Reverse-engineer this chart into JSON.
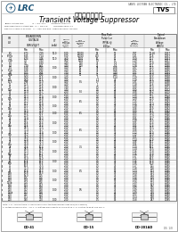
{
  "company": "LRC",
  "company_full": "GANSU LEIYUAN ELECTRONIC CO., LTD",
  "chinese_title": "抑制电压二极管",
  "english_title": "Transient Voltage Suppressor",
  "part_type": "TVS",
  "spec_lines": [
    "JEDEC STANDARD:            Ic = DO-41.1        Ordering 1500-4.1",
    "PERFORMANCE STANDARD:  Ic = DO-1.8         Ordering 2500-4.1",
    "REPACK TYPES & STYLES:  Ic = 200-200.800  Ordering 2500-APS-808"
  ],
  "col_headers_row1": [
    "VR\n(V)",
    "BREAKDOWN\nVOLTAGE\nVBR(V) @IT",
    "IT\n(mA)",
    "DEVICE\nMAXIMUM\nReverse\nLeakage\n@VWM\nID(μA)",
    "MAXIMUM\nCLAMPING\nVOLTAGE\nVC(V)\n@IPP",
    "MAXIMUM\nPEAK PULSE\nCURRENT\nIPP(A)",
    "最大芀抗\nRD(Ω)",
    "Maximum\nTemperature\nCoefficient\nof VBR\n(%/°C)"
  ],
  "col_headers_row2": [
    "",
    "Min",
    "Max",
    "",
    "",
    "",
    "",
    "Min",
    "Max",
    "RD",
    "TC"
  ],
  "row_data": [
    [
      "6.5",
      "6.73",
      "7.39",
      "10.0",
      "5.00",
      "10000",
      "85",
      "57",
      "0.97",
      "10.46",
      "0.057"
    ],
    [
      "6.97b",
      "6.45",
      "7.14",
      "",
      "5.00",
      "10000",
      "400",
      "57",
      "1.41",
      "10.6",
      "0.057"
    ],
    [
      "7.1",
      "6.74",
      "7.46",
      "10.0",
      "4.60",
      "1000",
      "50",
      "51",
      "1.59",
      "10.7",
      "0.057"
    ],
    [
      "7.4b",
      "7.0",
      "7.83",
      "",
      "4.60",
      "1000",
      "5.0",
      "51",
      "1.19",
      "11.1",
      "0.057"
    ],
    [
      "8.0",
      "7.6",
      "8.40",
      "",
      "4.40",
      "100",
      "33",
      "5.4",
      "1.78",
      "11.8",
      "0.060"
    ],
    [
      "8.2",
      "7.79",
      "8.61",
      "",
      "4.40",
      "100",
      "23",
      "5.4",
      "1.78",
      "12.1",
      "0.060"
    ],
    [
      "8.5",
      "8.08",
      "8.93",
      "1.00",
      "4.10",
      "50",
      "38",
      "1.68",
      "1.87",
      "12.5",
      "0.060"
    ],
    [
      "8.5b",
      "8.08",
      "8.93",
      "",
      "4.10",
      "50",
      "34",
      "1.68",
      "1.87",
      "12.5",
      "0.060"
    ],
    [
      "9.0",
      "8.55",
      "9.45",
      "",
      "3.70",
      "10",
      "30",
      "4.40",
      "1.07",
      "13.0",
      "0.064"
    ],
    [
      "9.0b",
      "8.55",
      "9.45",
      "",
      "3.70",
      "10",
      "41",
      "4.40",
      "1.07",
      "13.0",
      "0.064"
    ],
    [
      "10",
      "9.50",
      "10.5",
      "1.00",
      "4.00",
      "",
      "5",
      "5.14",
      "1.19",
      "14.5",
      "0.068"
    ],
    [
      "10b",
      "9.50",
      "10.5",
      "",
      "4.00",
      "",
      "1.7",
      "34",
      "1.19",
      "14.5",
      "0.068"
    ],
    [
      "10.5",
      "9.98",
      "11.0",
      "",
      "4.00",
      "5.5",
      "0.7",
      "54",
      "1.31",
      "15.0",
      "0.068"
    ],
    [
      "11",
      "10.5",
      "11.6",
      "",
      "4.00",
      "",
      "1",
      "74",
      "1.18",
      "15.6",
      "0.068"
    ],
    [
      "12",
      "11.4",
      "12.6",
      "1.00",
      "3.40",
      "",
      "0.5",
      "74",
      "1.00",
      "17.0",
      "0.072"
    ],
    [
      "12b",
      "11.4",
      "12.6",
      "",
      "3.40",
      "",
      "0.5",
      "74",
      "1.00",
      "17.0",
      "0.072"
    ],
    [
      "13",
      "12.4",
      "13.7",
      "",
      "2.50",
      "5.0",
      "0.5",
      "54",
      "1.08",
      "18.2",
      "0.075"
    ],
    [
      "14",
      "13.3",
      "14.7",
      "",
      "2.50",
      "",
      "0.5",
      "54",
      "1.18",
      "19.7",
      "0.075"
    ],
    [
      "15",
      "14.3",
      "15.8",
      "1.00",
      "2.30",
      "",
      "0.5",
      "54",
      "1.20",
      "21.5",
      "0.080"
    ],
    [
      "15b",
      "14.3",
      "15.8",
      "",
      "2.30",
      "",
      "0.5",
      "34",
      "1.20",
      "21.5",
      "0.080"
    ],
    [
      "16",
      "15.2",
      "16.8",
      "",
      "2.00",
      "6.5",
      "0.5",
      "74",
      "1.15",
      "23.1",
      "0.082"
    ],
    [
      "17",
      "16.2",
      "17.9",
      "",
      "2.00",
      "",
      "0.5",
      "74",
      "1.15",
      "24.4",
      "0.082"
    ],
    [
      "18",
      "17.1",
      "18.9",
      "1.00",
      "2.00",
      "",
      "0.5",
      "74",
      "1.18",
      "25.2",
      "0.082"
    ],
    [
      "18b",
      "17.1",
      "18.9",
      "",
      "2.00",
      "",
      "0.5",
      "74",
      "1.08",
      "26.9",
      "0.082"
    ],
    [
      "20",
      "19.0",
      "21.0",
      "",
      "2.00",
      "",
      "0.5",
      "54",
      "1.00",
      "29.1",
      "0.082"
    ],
    [
      "22",
      "20.9",
      "23.1",
      "1.00",
      "2.00",
      "6.5",
      "0.5",
      "54",
      "1.03",
      "31.9",
      "0.085"
    ],
    [
      "22b",
      "20.9",
      "23.1",
      "",
      "2.00",
      "",
      "0.5",
      "54",
      "1.03",
      "31.9",
      "0.085"
    ],
    [
      "24",
      "22.8",
      "25.2",
      "",
      "2.00",
      "",
      "0.5",
      "34",
      "1.05",
      "34.7",
      "0.085"
    ],
    [
      "26",
      "24.7",
      "27.3",
      "",
      "2.00",
      "",
      "0.5",
      "74",
      "1.18",
      "37.5",
      "0.085"
    ],
    [
      "28",
      "26.6",
      "29.4",
      "1.00",
      "2.00",
      "",
      "0.5",
      "74",
      "1.05",
      "40.4",
      "0.085"
    ],
    [
      "28b",
      "26.6",
      "29.4",
      "",
      "2.00",
      "",
      "0.5",
      "74",
      "1.05",
      "40.4",
      "0.085"
    ],
    [
      "30",
      "28.5",
      "31.5",
      "",
      "2.00",
      "",
      "0.5",
      "54",
      "1.06",
      "43.5",
      "0.085"
    ],
    [
      "33",
      "31.4",
      "34.7",
      "",
      "2.00",
      "6.5",
      "0.5",
      "54",
      "1.08",
      "47.7",
      "0.085"
    ],
    [
      "36",
      "34.2",
      "37.8",
      "1.00",
      "2.00",
      "",
      "0.5",
      "34",
      "1.12",
      "52.0",
      "0.085"
    ],
    [
      "36b",
      "34.2",
      "37.8",
      "",
      "2.00",
      "",
      "0.5",
      "74",
      "1.12",
      "52.0",
      "0.085"
    ],
    [
      "40",
      "38.0",
      "42.0",
      "",
      "2.00",
      "",
      "0.5",
      "74",
      "1.05",
      "57.5",
      "0.085"
    ],
    [
      "43",
      "40.9",
      "45.2",
      "",
      "2.00",
      "",
      "0.5",
      "74",
      "1.14",
      "61.9",
      "0.085"
    ],
    [
      "45",
      "42.8",
      "47.3",
      "1.00",
      "2.00",
      "",
      "0.5",
      "54",
      "1.06",
      "64.1",
      "0.085"
    ],
    [
      "45b",
      "42.8",
      "47.3",
      "",
      "2.00",
      "",
      "0.5",
      "54",
      "1.06",
      "64.1",
      "0.085"
    ],
    [
      "48",
      "45.6",
      "50.4",
      "",
      "2.00",
      "7.5",
      "0.5",
      "54",
      "1.10",
      "69.1",
      "0.085"
    ],
    [
      "51",
      "48.5",
      "53.6",
      "",
      "2.00",
      "",
      "0.5",
      "74",
      "1.14",
      "73.5",
      "0.085"
    ],
    [
      "54",
      "51.3",
      "56.7",
      "1.00",
      "2.00",
      "",
      "0.5",
      "74",
      "1.16",
      "77.8",
      "0.085"
    ],
    [
      "54b",
      "51.3",
      "56.7",
      "",
      "2.00",
      "",
      "0.5",
      "74",
      "1.16",
      "77.8",
      "0.085"
    ],
    [
      "58",
      "55.1",
      "60.9",
      "",
      "2.00",
      "",
      "0.5",
      "54",
      "1.17",
      "83.6",
      "0.085"
    ],
    [
      "60",
      "57.0",
      "63.0",
      "",
      "2.00",
      "",
      "0.5",
      "54",
      "1.15",
      "86.5",
      "0.085"
    ],
    [
      "64",
      "60.8",
      "67.2",
      "1.00",
      "2.00",
      "",
      "0.5",
      "74",
      "1.16",
      "92.0",
      "0.085"
    ],
    [
      "64b",
      "60.8",
      "67.2",
      "",
      "2.00",
      "",
      "0.5",
      "74",
      "1.16",
      "92.0",
      "0.085"
    ],
    [
      "70",
      "66.5",
      "73.5",
      "",
      "2.00",
      "",
      "0.5",
      "74",
      "1.17",
      "101",
      "0.085"
    ],
    [
      "75",
      "71.3",
      "78.8",
      "",
      "2.00",
      "",
      "0.5",
      "54",
      "1.18",
      "108",
      "0.085"
    ],
    [
      "85",
      "80.8",
      "89.3",
      "1.00",
      "2.00",
      "8.5",
      "0.5",
      "54",
      "1.24",
      "123",
      "0.085"
    ],
    [
      "85b",
      "80.8",
      "89.3",
      "",
      "2.00",
      "",
      "0.5",
      "74",
      "1.24",
      "123",
      "0.085"
    ],
    [
      "100",
      "95.0",
      "105",
      "",
      "2.00",
      "",
      "0.5",
      "74",
      "1.38",
      "144",
      "0.085"
    ],
    [
      "110",
      "105",
      "116",
      "",
      "2.00",
      "",
      "0.5",
      "74",
      "1.38",
      "159",
      "0.085"
    ],
    [
      "120",
      "114",
      "126",
      "1.00",
      "2.00",
      "",
      "0.5",
      "54",
      "1.39",
      "173",
      "0.085"
    ],
    [
      "120b",
      "114",
      "126",
      "",
      "2.00",
      "",
      "0.5",
      "74",
      "1.39",
      "173",
      "0.085"
    ],
    [
      "130",
      "123",
      "137",
      "",
      "2.00",
      "",
      "0.5",
      "74",
      "1.42",
      "187",
      "0.085"
    ],
    [
      "150",
      "143",
      "158",
      "",
      "2.00",
      "",
      "0.5",
      "74",
      "1.49",
      "215",
      "0.085"
    ],
    [
      "160",
      "152",
      "168",
      "1.00",
      "2.00",
      "9.5",
      "0.5",
      "74",
      "1.49",
      "230",
      "0.085"
    ],
    [
      "160b",
      "152",
      "168",
      "",
      "2.00",
      "",
      "0.5",
      "74",
      "1.49",
      "230",
      "0.085"
    ],
    [
      "170",
      "162",
      "179",
      "",
      "2.00",
      "",
      "0.5",
      "54",
      "1.52",
      "244",
      "0.085"
    ],
    [
      "180",
      "171",
      "189",
      "",
      "2.00",
      "",
      "0.5",
      "54",
      "1.54",
      "258",
      "0.085"
    ],
    [
      "200",
      "190",
      "210",
      "1.00",
      "2.00",
      "",
      "0.5",
      "54",
      "1.58",
      "287",
      "0.085"
    ]
  ],
  "footnote1": "Note: 1. b = Bi-directional  2. Device marking is the type number suffix only(eg.1.5KE6.5)",
  "footnote2": "3. Voltage measured at Tj = 25°C  4. Wattage measured to Tc, Tamb at 25°C  5. Junction to be at Tj of 150°C",
  "packages": [
    "DO-41",
    "DO-15",
    "DO-201AD"
  ],
  "page": "DS  1/8",
  "bg_color": "#ffffff"
}
